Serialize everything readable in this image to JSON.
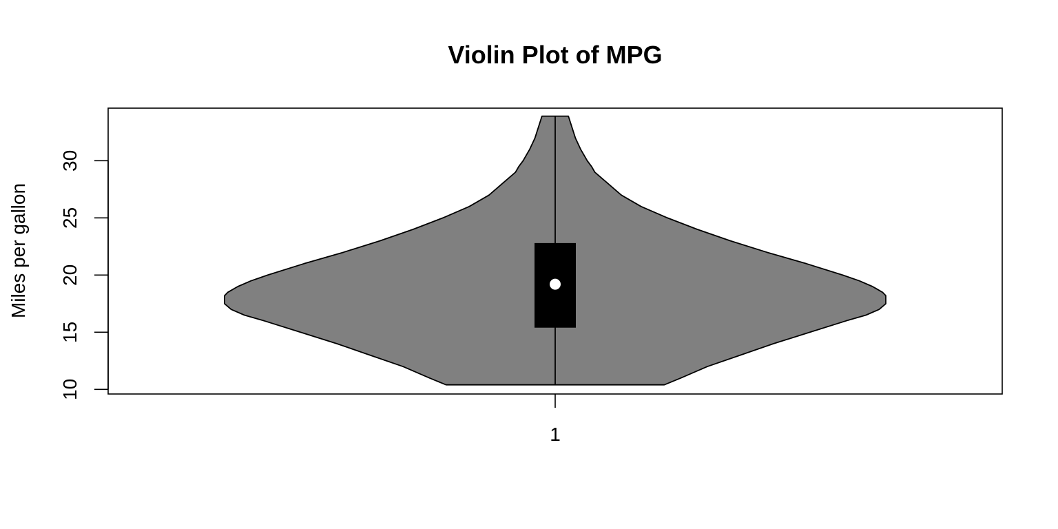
{
  "chart_data": {
    "type": "violin",
    "title": "Violin Plot of MPG",
    "xlabel": "",
    "ylabel": "Miles per gallon",
    "categories": [
      "1"
    ],
    "ylim": [
      9.6,
      34.6
    ],
    "yticks": [
      10,
      15,
      20,
      25,
      30
    ],
    "ytick_labels": [
      "10",
      "15",
      "20",
      "25",
      "30"
    ],
    "series": [
      {
        "category": "1",
        "min": 10.4,
        "q1": 15.4,
        "median": 19.2,
        "q3": 22.8,
        "max": 33.9,
        "density_y": [
          10.4,
          11,
          12,
          13,
          14,
          15,
          16,
          16.5,
          17,
          17.5,
          18,
          18.2,
          18.5,
          19,
          19.5,
          20,
          21,
          22,
          23,
          24,
          25,
          26,
          27,
          28,
          28.5,
          29,
          29.5,
          30,
          30.5,
          31,
          32,
          33,
          33.9
        ],
        "density_w": [
          0.33,
          0.38,
          0.46,
          0.56,
          0.66,
          0.77,
          0.88,
          0.94,
          0.98,
          1.0,
          1.0,
          1.0,
          0.99,
          0.96,
          0.92,
          0.87,
          0.76,
          0.64,
          0.53,
          0.43,
          0.34,
          0.26,
          0.2,
          0.16,
          0.14,
          0.12,
          0.11,
          0.097,
          0.087,
          0.077,
          0.061,
          0.05,
          0.04
        ]
      }
    ],
    "colors": {
      "violin_fill": "#808080",
      "violin_stroke": "#000000",
      "box_fill": "#000000",
      "median_point": "#ffffff"
    },
    "grid": false,
    "legend": "none"
  }
}
